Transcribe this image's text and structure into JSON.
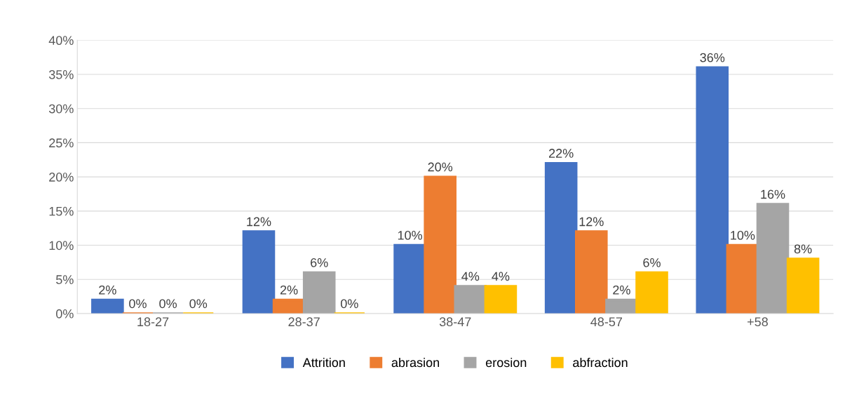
{
  "chart_data": {
    "type": "bar",
    "categories": [
      "18-27",
      "28-37",
      "38-47",
      "48-57",
      "+58"
    ],
    "series": [
      {
        "name": "Attrition",
        "color": "#4472c4",
        "values": [
          2,
          12,
          10,
          22,
          36
        ],
        "value_labels": [
          "2%",
          "12%",
          "10%",
          "22%",
          "36%"
        ]
      },
      {
        "name": "abrasion",
        "color": "#ed7d31",
        "values": [
          0,
          2,
          20,
          12,
          10
        ],
        "value_labels": [
          "0%",
          "2%",
          "20%",
          "12%",
          "10%"
        ]
      },
      {
        "name": "erosion",
        "color": "#a5a5a5",
        "values": [
          0,
          6,
          4,
          2,
          16
        ],
        "value_labels": [
          "0%",
          "6%",
          "4%",
          "2%",
          "16%"
        ]
      },
      {
        "name": "abfraction",
        "color": "#ffc000",
        "values": [
          0,
          0,
          4,
          6,
          8
        ],
        "value_labels": [
          "0%",
          "0%",
          "4%",
          "6%",
          "8%"
        ]
      }
    ],
    "ylim": [
      0,
      40
    ],
    "yticks": [
      {
        "value": 0,
        "label": "0%"
      },
      {
        "value": 5,
        "label": "5%"
      },
      {
        "value": 10,
        "label": "10%"
      },
      {
        "value": 15,
        "label": "15%"
      },
      {
        "value": 20,
        "label": "20%"
      },
      {
        "value": 25,
        "label": "25%"
      },
      {
        "value": 30,
        "label": "30%"
      },
      {
        "value": 35,
        "label": "35%"
      },
      {
        "value": 40,
        "label": "40%"
      }
    ],
    "grid": "y",
    "legend": "bottom"
  }
}
